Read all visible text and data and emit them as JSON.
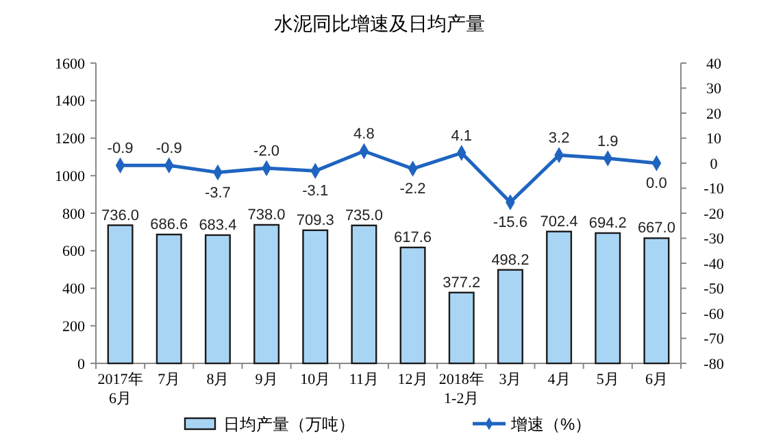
{
  "chart_data": {
    "type": "bar",
    "title": "水泥同比增速及日均产量",
    "categories": [
      "2017年\n6月",
      "7月",
      "8月",
      "9月",
      "10月",
      "11月",
      "12月",
      "2018年\n1-2月",
      "3月",
      "4月",
      "5月",
      "6月"
    ],
    "series": [
      {
        "name": "日均产量（万吨）",
        "color": "#a9d5f5",
        "values": [
          736.0,
          686.6,
          683.4,
          738.0,
          709.3,
          735.0,
          617.6,
          377.2,
          498.2,
          702.4,
          694.2,
          667.0
        ],
        "value_labels": [
          "736.0",
          "686.6",
          "683.4",
          "738.0",
          "709.3",
          "735.0",
          "617.6",
          "377.2",
          "498.2",
          "702.4",
          "694.2",
          "667.0"
        ]
      },
      {
        "name": "增速（%）",
        "type": "line",
        "axis": "y2",
        "color": "#1f64c0",
        "marker": "diamond",
        "values": [
          -0.9,
          -0.9,
          -3.7,
          -2.0,
          -3.1,
          4.8,
          -2.2,
          4.1,
          -15.6,
          3.2,
          1.9,
          0.0
        ],
        "value_labels": [
          "-0.9",
          "-0.9",
          "-3.7",
          "-2.0",
          "-3.1",
          "4.8",
          "-2.2",
          "4.1",
          "-15.6",
          "3.2",
          "1.9",
          "0.0"
        ]
      }
    ],
    "ylim": [
      0,
      1600
    ],
    "yticks": [
      0,
      200,
      400,
      600,
      800,
      1000,
      1200,
      1400,
      1600
    ],
    "y2lim": [
      -80,
      40
    ],
    "y2ticks": [
      -80,
      -70,
      -60,
      -50,
      -40,
      -30,
      -20,
      -10,
      0,
      10,
      20,
      30,
      40
    ],
    "grid": false,
    "legend": "bottom"
  }
}
